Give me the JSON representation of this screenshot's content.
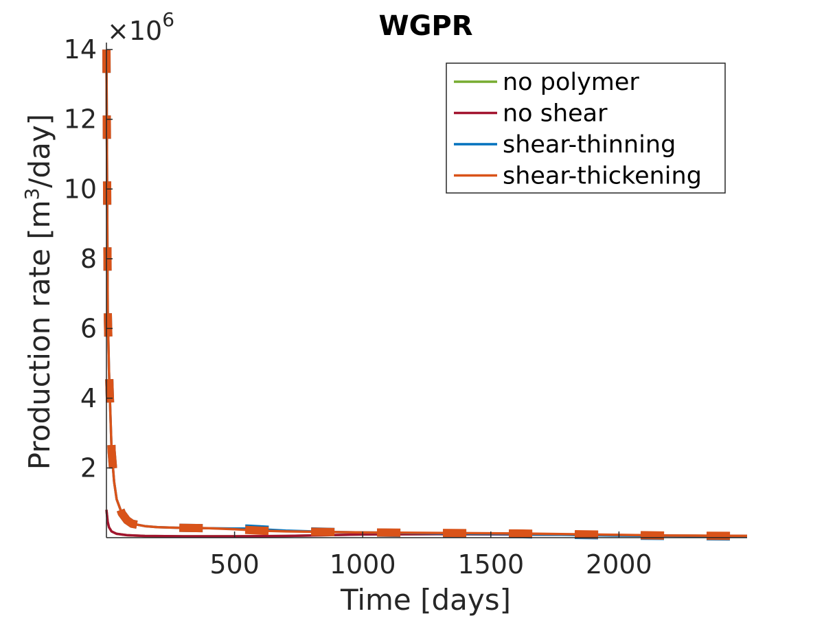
{
  "chart_data": {
    "type": "line",
    "title": "WGPR",
    "xlabel": "Time [days]",
    "ylabel_main": "Production rate [m",
    "ylabel_sup": "3",
    "ylabel_tail": "/day]",
    "multiplier_base": "×10",
    "multiplier_exp": "6",
    "xlim": [
      0,
      2500
    ],
    "ylim": [
      0,
      14.2
    ],
    "y_scale_factor": 1000000,
    "xticks": [
      500,
      1000,
      1500,
      2000
    ],
    "xtick_labels": [
      "500",
      "1000",
      "1500",
      "2000"
    ],
    "yticks": [
      2,
      4,
      6,
      8,
      10,
      12,
      14
    ],
    "ytick_labels": [
      "2",
      "4",
      "6",
      "8",
      "10",
      "12",
      "14"
    ],
    "legend_position": "top-right",
    "series": [
      {
        "name": "no polymer",
        "color": "#77AC30",
        "x": [
          0,
          5,
          10,
          20,
          40,
          80,
          150,
          300,
          500,
          700,
          1000,
          1300,
          1600,
          1900,
          2200,
          2500
        ],
        "y": [
          0.8,
          0.45,
          0.3,
          0.18,
          0.11,
          0.07,
          0.05,
          0.04,
          0.04,
          0.05,
          0.09,
          0.1,
          0.09,
          0.08,
          0.06,
          0.05
        ]
      },
      {
        "name": "no shear",
        "color": "#A2142F",
        "x": [
          0,
          5,
          10,
          20,
          40,
          80,
          150,
          300,
          500,
          700,
          1000,
          1300,
          1600,
          1900,
          2200,
          2500
        ],
        "y": [
          0.8,
          0.45,
          0.3,
          0.18,
          0.11,
          0.07,
          0.05,
          0.04,
          0.04,
          0.05,
          0.09,
          0.1,
          0.09,
          0.08,
          0.06,
          0.05
        ]
      },
      {
        "name": "shear-thinning",
        "color": "#0072BD",
        "x": [
          0,
          5,
          10,
          20,
          30,
          40,
          60,
          80,
          100,
          150,
          200,
          300,
          400,
          500,
          550,
          600,
          700,
          800,
          900,
          1000,
          1200,
          1400,
          1600,
          1800,
          2000,
          2200,
          2500
        ],
        "y": [
          14.0,
          6.5,
          4.8,
          2.5,
          1.6,
          1.1,
          0.7,
          0.5,
          0.4,
          0.33,
          0.3,
          0.28,
          0.27,
          0.26,
          0.26,
          0.24,
          0.2,
          0.18,
          0.16,
          0.15,
          0.13,
          0.11,
          0.1,
          0.08,
          0.06,
          0.05,
          0.03
        ]
      },
      {
        "name": "shear-thickening",
        "color": "#D95319",
        "x": [
          0,
          5,
          10,
          20,
          30,
          40,
          60,
          80,
          100,
          150,
          200,
          300,
          400,
          500,
          600,
          700,
          800,
          900,
          1000,
          1200,
          1400,
          1600,
          1800,
          2000,
          2200,
          2500
        ],
        "y": [
          14.0,
          6.5,
          4.8,
          2.5,
          1.6,
          1.1,
          0.7,
          0.5,
          0.4,
          0.33,
          0.3,
          0.28,
          0.27,
          0.24,
          0.2,
          0.18,
          0.17,
          0.16,
          0.15,
          0.14,
          0.13,
          0.12,
          0.1,
          0.08,
          0.06,
          0.05
        ]
      }
    ]
  }
}
